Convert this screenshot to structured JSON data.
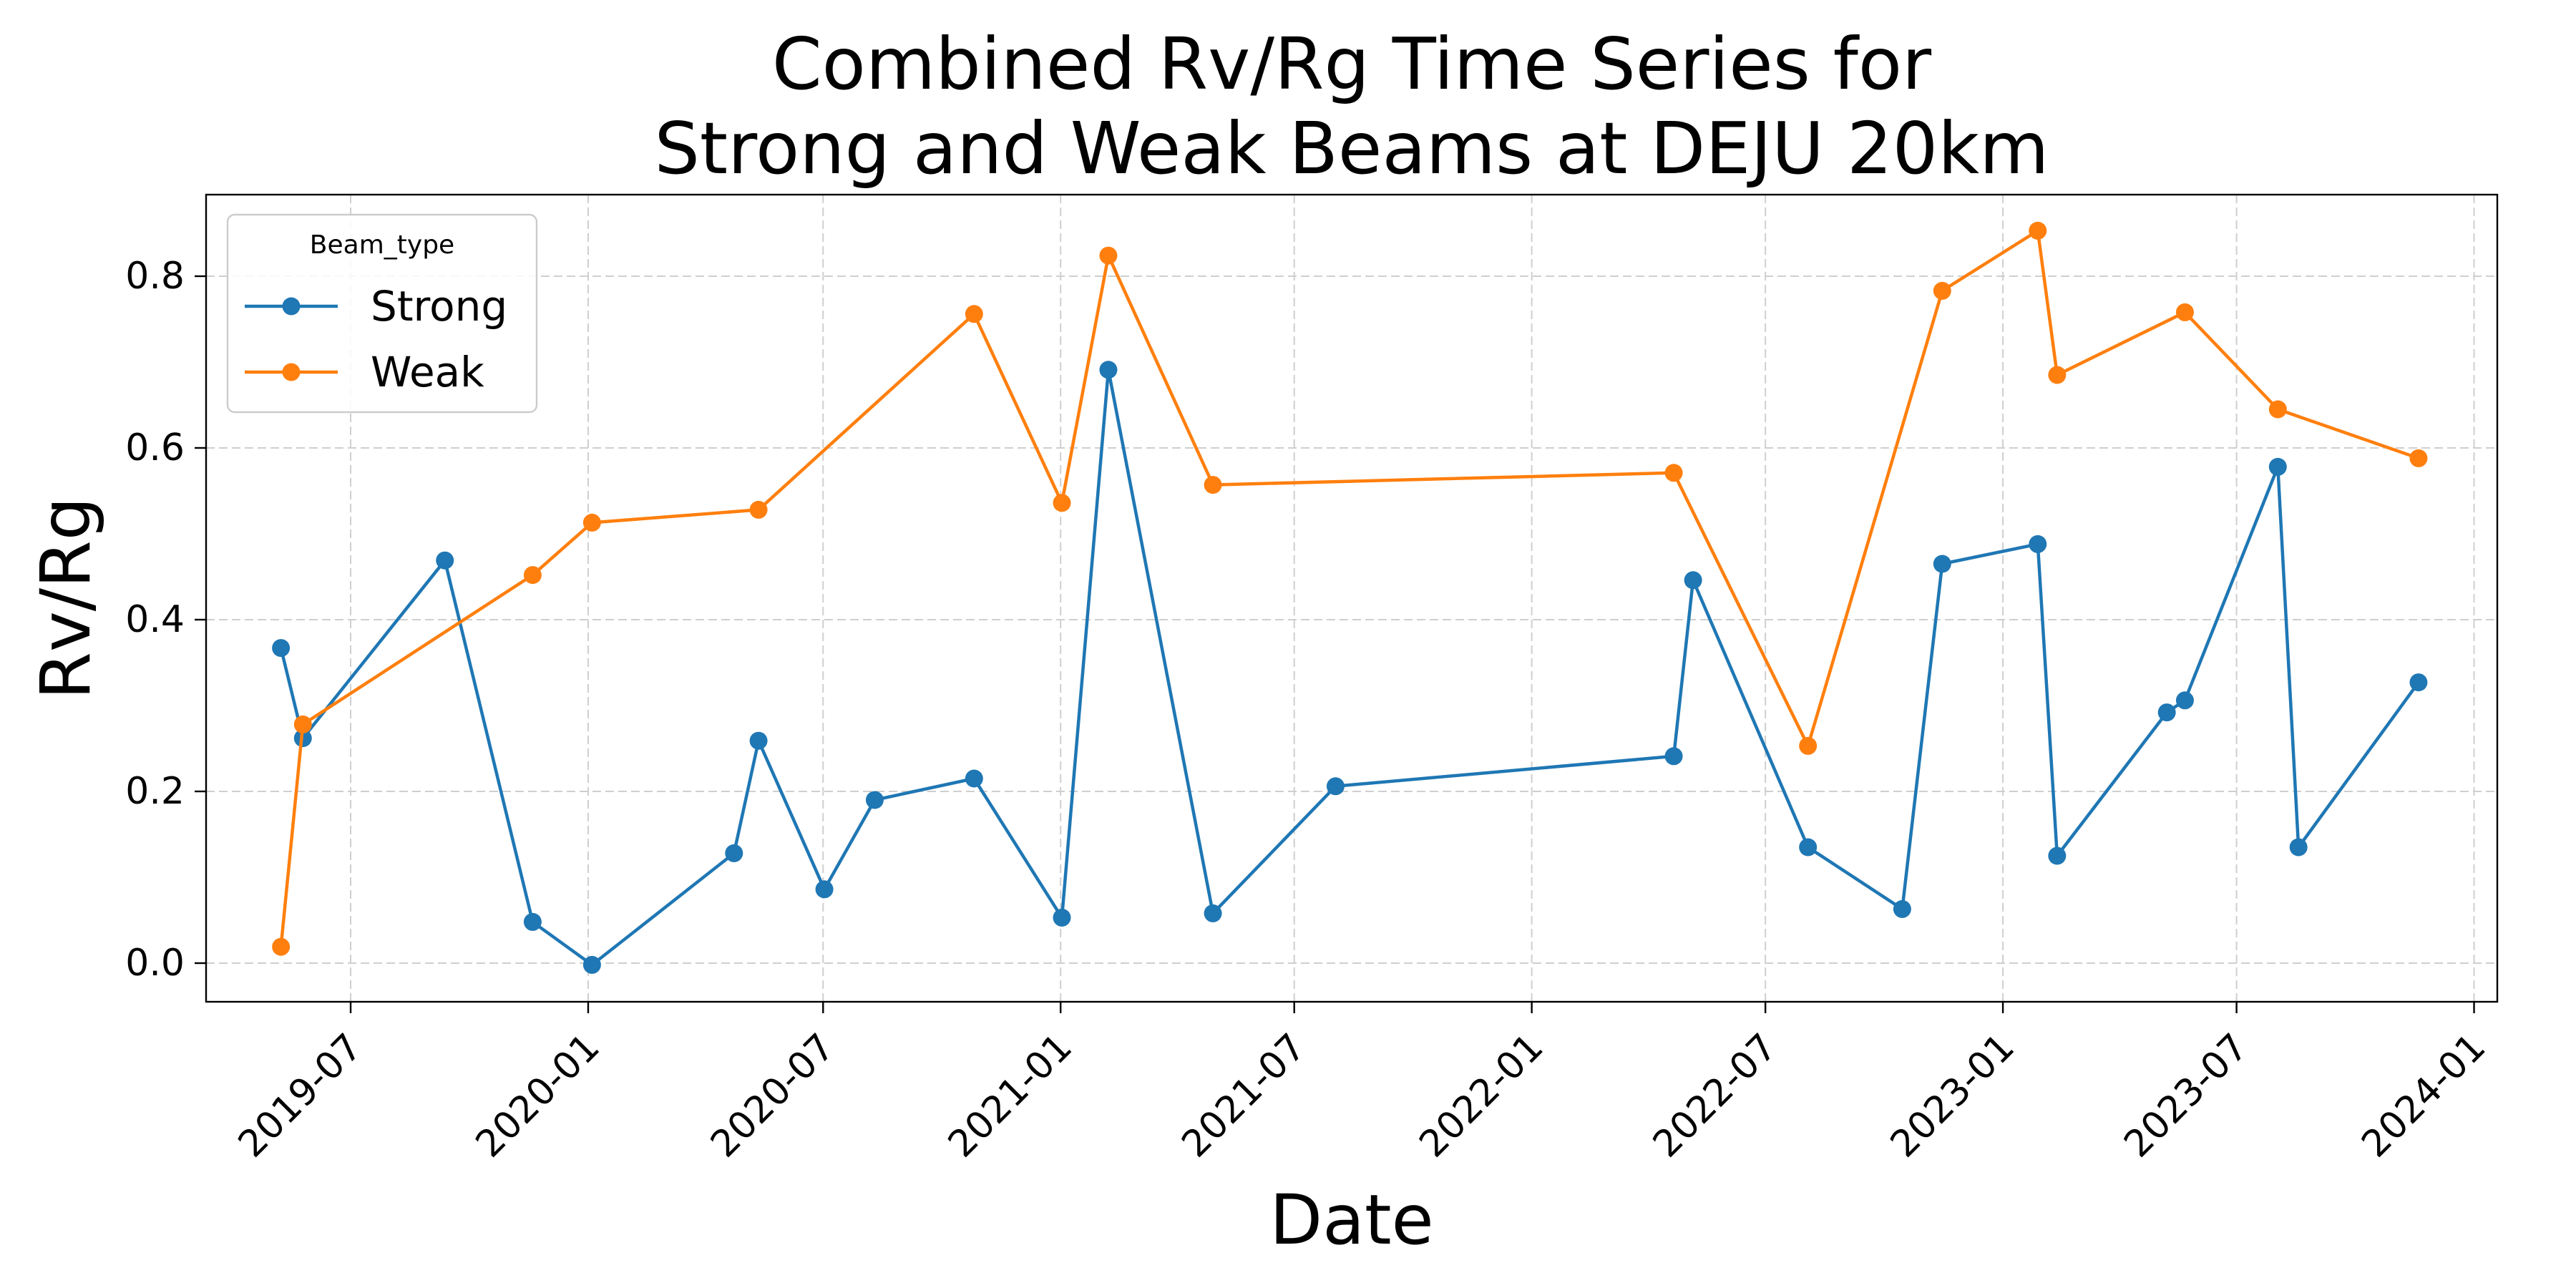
{
  "chart_data": {
    "type": "line",
    "title": "Combined Rv/Rg Time Series for\nStrong and Weak Beams at DEJU 20km",
    "xlabel": "Date",
    "ylabel": "Rv/Rg",
    "xlim": [
      "2019-03-11",
      "2024-01-19"
    ],
    "ylim": [
      -0.045,
      0.895
    ],
    "x_ticks": [
      "2019-07-01",
      "2020-01-01",
      "2020-07-01",
      "2021-01-01",
      "2021-07-01",
      "2022-01-01",
      "2022-07-01",
      "2023-01-01",
      "2023-07-01",
      "2024-01-01"
    ],
    "x_tick_labels": [
      "2019-07",
      "2020-01",
      "2020-07",
      "2021-01",
      "2021-07",
      "2022-01",
      "2022-07",
      "2023-01",
      "2023-07",
      "2024-01"
    ],
    "y_ticks": [
      0.0,
      0.2,
      0.4,
      0.6,
      0.8
    ],
    "y_tick_labels": [
      "0.0",
      "0.2",
      "0.4",
      "0.6",
      "0.8"
    ],
    "grid": true,
    "legend": {
      "title": "Beam_type",
      "position": "top-left"
    },
    "series": [
      {
        "name": "Strong",
        "color": "#1f77b4",
        "points": [
          [
            "2019-05-08",
            0.367
          ],
          [
            "2019-05-25",
            0.262
          ],
          [
            "2019-09-12",
            0.469
          ],
          [
            "2019-11-19",
            0.048
          ],
          [
            "2020-01-04",
            -0.002
          ],
          [
            "2020-04-23",
            0.128
          ],
          [
            "2020-05-12",
            0.259
          ],
          [
            "2020-07-02",
            0.086
          ],
          [
            "2020-08-10",
            0.19
          ],
          [
            "2020-10-26",
            0.215
          ],
          [
            "2021-01-02",
            0.053
          ],
          [
            "2021-02-07",
            0.691
          ],
          [
            "2021-04-29",
            0.058
          ],
          [
            "2021-08-02",
            0.206
          ],
          [
            "2022-04-21",
            0.241
          ],
          [
            "2022-05-06",
            0.446
          ],
          [
            "2022-08-03",
            0.135
          ],
          [
            "2022-10-15",
            0.063
          ],
          [
            "2022-11-15",
            0.465
          ],
          [
            "2023-01-28",
            0.488
          ],
          [
            "2023-02-12",
            0.125
          ],
          [
            "2023-05-08",
            0.292
          ],
          [
            "2023-05-22",
            0.306
          ],
          [
            "2023-08-02",
            0.578
          ],
          [
            "2023-08-18",
            0.135
          ],
          [
            "2023-11-19",
            0.327
          ]
        ]
      },
      {
        "name": "Weak",
        "color": "#ff7f0e",
        "points": [
          [
            "2019-05-08",
            0.019
          ],
          [
            "2019-05-25",
            0.278
          ],
          [
            "2019-11-19",
            0.452
          ],
          [
            "2020-01-04",
            0.513
          ],
          [
            "2020-05-12",
            0.528
          ],
          [
            "2020-10-26",
            0.756
          ],
          [
            "2021-01-02",
            0.536
          ],
          [
            "2021-02-07",
            0.824
          ],
          [
            "2021-04-29",
            0.557
          ],
          [
            "2022-04-21",
            0.571
          ],
          [
            "2022-08-03",
            0.253
          ],
          [
            "2022-11-15",
            0.783
          ],
          [
            "2023-01-28",
            0.853
          ],
          [
            "2023-02-12",
            0.685
          ],
          [
            "2023-05-22",
            0.758
          ],
          [
            "2023-08-02",
            0.645
          ],
          [
            "2023-11-19",
            0.588
          ]
        ]
      }
    ]
  }
}
